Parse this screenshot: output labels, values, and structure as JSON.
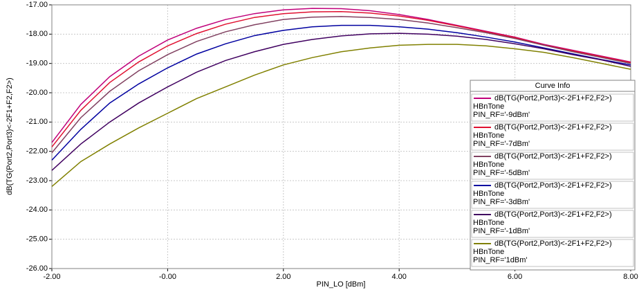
{
  "chart_data": {
    "type": "line",
    "x_label": "PIN_LO [dBm]",
    "y_label": "dB(TG(Port2,Port3)<-2F1+F2,F2>)",
    "legend_title": "Curve Info",
    "grid": true,
    "xlim": [
      -2,
      8
    ],
    "ylim": [
      -26,
      -17
    ],
    "xticks": [
      {
        "value": -2,
        "label": "-2.00"
      },
      {
        "value": 0,
        "label": "-0.00"
      },
      {
        "value": 2,
        "label": "2.00"
      },
      {
        "value": 4,
        "label": "4.00"
      },
      {
        "value": 6,
        "label": "6.00"
      },
      {
        "value": 8,
        "label": "8.00"
      }
    ],
    "yticks": [
      {
        "value": -17,
        "label": "-17.00"
      },
      {
        "value": -18,
        "label": "-18.00"
      },
      {
        "value": -19,
        "label": "-19.00"
      },
      {
        "value": -20,
        "label": "-20.00"
      },
      {
        "value": -21,
        "label": "-21.00"
      },
      {
        "value": -22,
        "label": "-22.00"
      },
      {
        "value": -23,
        "label": "-23.00"
      },
      {
        "value": -24,
        "label": "-24.00"
      },
      {
        "value": -25,
        "label": "-25.00"
      },
      {
        "value": -26,
        "label": "-26.00"
      }
    ],
    "x": [
      -2,
      -1.5,
      -1,
      -0.5,
      0,
      0.5,
      1,
      1.5,
      2,
      2.5,
      3,
      3.5,
      4,
      4.5,
      5,
      5.5,
      6,
      6.5,
      7,
      7.5,
      8
    ],
    "series": [
      {
        "name": "dB(TG(Port2,Port3)<-2F1+F2,F2>)",
        "setup": "HBnTone",
        "variation": "PIN_RF='-9dBm'",
        "color": "#c0007a",
        "values": [
          -21.7,
          -20.4,
          -19.45,
          -18.75,
          -18.2,
          -17.8,
          -17.5,
          -17.3,
          -17.17,
          -17.12,
          -17.13,
          -17.2,
          -17.33,
          -17.5,
          -17.7,
          -17.9,
          -18.1,
          -18.35,
          -18.55,
          -18.75,
          -18.95
        ]
      },
      {
        "name": "dB(TG(Port2,Port3)<-2F1+F2,F2>)",
        "setup": "HBnTone",
        "variation": "PIN_RF='-7dBm'",
        "color": "#e01030",
        "values": [
          -21.85,
          -20.6,
          -19.65,
          -18.95,
          -18.4,
          -17.98,
          -17.66,
          -17.43,
          -17.3,
          -17.24,
          -17.23,
          -17.28,
          -17.38,
          -17.53,
          -17.72,
          -17.92,
          -18.12,
          -18.37,
          -18.57,
          -18.77,
          -18.97
        ]
      },
      {
        "name": "dB(TG(Port2,Port3)<-2F1+F2,F2>)",
        "setup": "HBnTone",
        "variation": "PIN_RF='-5dBm'",
        "color": "#804060",
        "values": [
          -22.05,
          -20.85,
          -19.95,
          -19.25,
          -18.7,
          -18.25,
          -17.92,
          -17.68,
          -17.5,
          -17.42,
          -17.4,
          -17.43,
          -17.5,
          -17.62,
          -17.78,
          -17.95,
          -18.15,
          -18.38,
          -18.6,
          -18.8,
          -19.0
        ]
      },
      {
        "name": "dB(TG(Port2,Port3)<-2F1+F2,F2>)",
        "setup": "HBnTone",
        "variation": "PIN_RF='-3dBm'",
        "color": "#0000a0",
        "values": [
          -22.3,
          -21.25,
          -20.35,
          -19.7,
          -19.15,
          -18.68,
          -18.33,
          -18.05,
          -17.87,
          -17.75,
          -17.7,
          -17.7,
          -17.75,
          -17.83,
          -17.95,
          -18.1,
          -18.27,
          -18.47,
          -18.67,
          -18.87,
          -19.05
        ]
      },
      {
        "name": "dB(TG(Port2,Port3)<-2F1+F2,F2>)",
        "setup": "HBnTone",
        "variation": "PIN_RF='-1dBm'",
        "color": "#400060",
        "values": [
          -22.65,
          -21.75,
          -21.0,
          -20.35,
          -19.8,
          -19.3,
          -18.9,
          -18.6,
          -18.35,
          -18.18,
          -18.06,
          -17.99,
          -17.97,
          -18.0,
          -18.07,
          -18.18,
          -18.33,
          -18.5,
          -18.7,
          -18.88,
          -19.1
        ]
      },
      {
        "name": "dB(TG(Port2,Port3)<-2F1+F2,F2>)",
        "setup": "HBnTone",
        "variation": "PIN_RF='1dBm'",
        "color": "#808000",
        "values": [
          -23.2,
          -22.35,
          -21.75,
          -21.2,
          -20.7,
          -20.2,
          -19.8,
          -19.4,
          -19.05,
          -18.8,
          -18.6,
          -18.47,
          -18.38,
          -18.35,
          -18.35,
          -18.4,
          -18.5,
          -18.62,
          -18.8,
          -19.0,
          -19.2
        ]
      }
    ]
  }
}
